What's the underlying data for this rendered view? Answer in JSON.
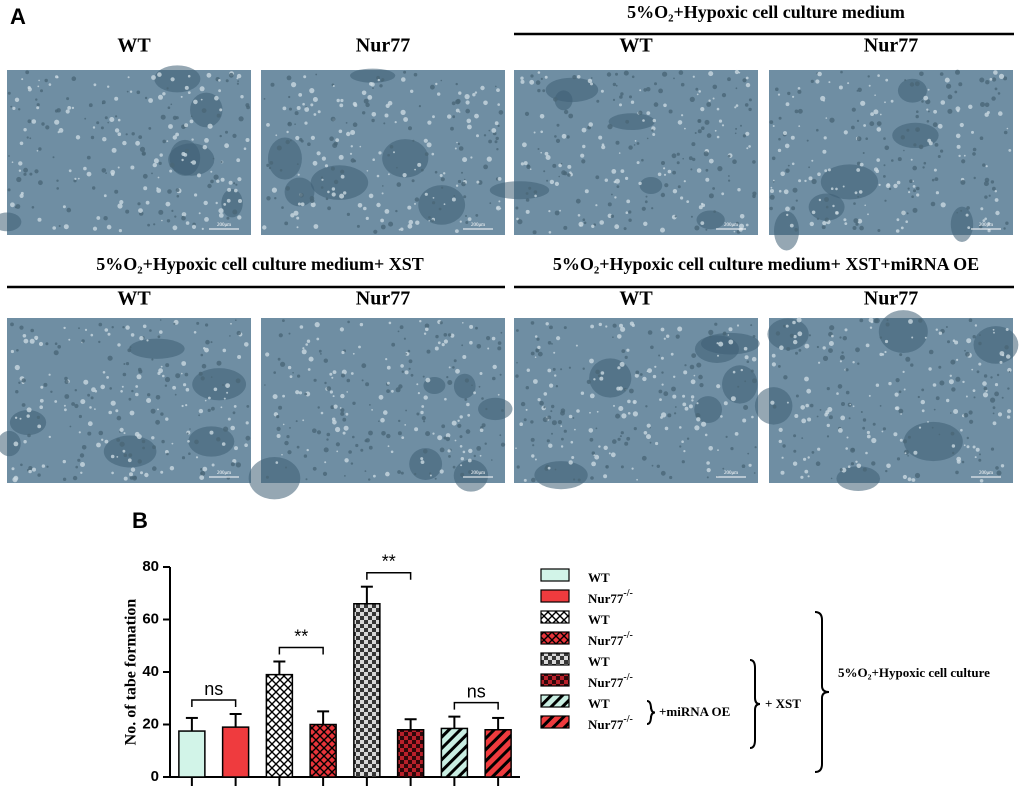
{
  "panel_a": {
    "label": "A",
    "header_top_right": "5%O₂+Hypoxic cell culture medium",
    "header_mid_left": "5%O₂+Hypoxic cell culture medium+ XST",
    "header_mid_right": "5%O₂+Hypoxic cell culture medium+ XST+miRNA OE",
    "image_labels": [
      "WT",
      "Nur77",
      "WT",
      "Nur77",
      "WT",
      "Nur77",
      "WT",
      "Nur77"
    ],
    "scale_bar": "200μm"
  },
  "chart_data": {
    "type": "bar",
    "panel_label": "B",
    "y_label": "No. of tabe formation",
    "categories": [
      null,
      null,
      null,
      null,
      null,
      null,
      null,
      null
    ],
    "values": [
      17.5,
      19,
      39,
      20,
      66,
      18,
      18.5,
      18
    ],
    "errors": [
      5,
      5,
      5,
      5,
      6.5,
      4,
      4.5,
      4.5
    ],
    "colors": [
      "#d2f4e8",
      "#ef3b3e",
      "#ffffff",
      "#e8343a",
      "#d8d8d8",
      "#b8202a",
      "#c9eee2",
      "#ef3b3e"
    ],
    "patterns": [
      "solid",
      "solid",
      "crosshatch",
      "crosshatch",
      "checker",
      "checker",
      "stripes",
      "stripes"
    ],
    "ylim": [
      0,
      80
    ],
    "yticks": [
      0,
      20,
      40,
      60,
      80
    ],
    "significance": [
      "ns",
      "**",
      "**",
      "ns"
    ],
    "legend": [
      {
        "name": "WT"
      },
      {
        "name": "Nur77",
        "superscript": "-/-"
      },
      {
        "name": "WT"
      },
      {
        "name": "Nur77",
        "superscript": "-/-"
      },
      {
        "name": "WT"
      },
      {
        "name": "Nur77",
        "superscript": "-/-"
      },
      {
        "name": "WT"
      },
      {
        "name": "Nur77",
        "superscript": "-/-"
      }
    ],
    "brace_labels": [
      "+miRNA OE",
      "+ XST",
      "5%O₂+Hypoxic cell culture"
    ]
  }
}
